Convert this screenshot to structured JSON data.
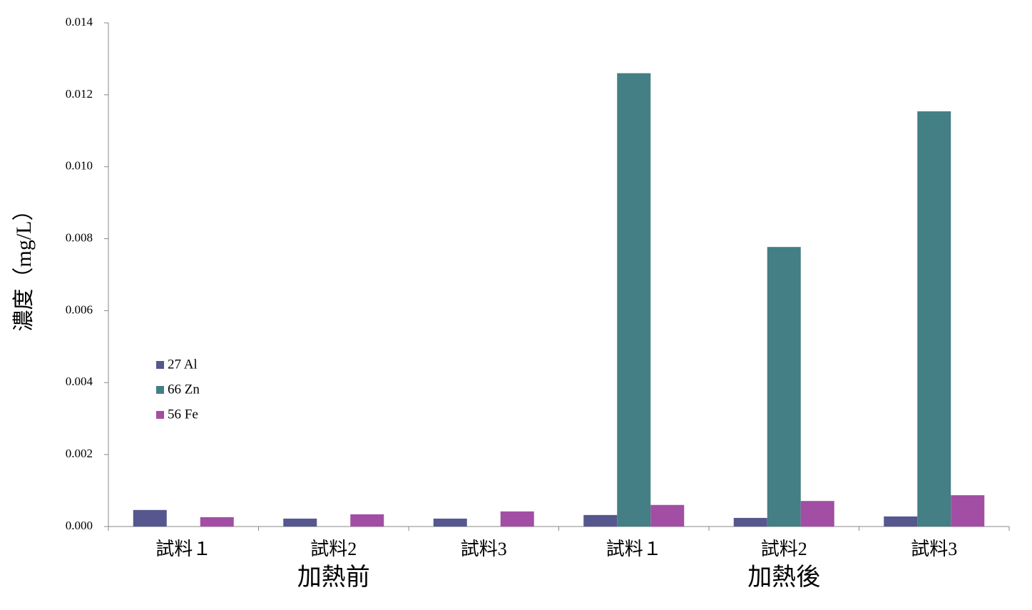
{
  "chart_data": {
    "type": "bar",
    "y_label": "濃度（mg/L）",
    "categories": [
      "試料１",
      "試料2",
      "試料3",
      "試料１",
      "試料2",
      "試料3"
    ],
    "group_labels": [
      "加熱前",
      "加熱後"
    ],
    "series": [
      {
        "name": "27 Al",
        "color": "#55578e",
        "values": [
          0.00046,
          0.00022,
          0.00022,
          0.00032,
          0.00024,
          0.00028
        ]
      },
      {
        "name": "66 Zn",
        "color": "#437f84",
        "values": [
          0,
          0,
          0,
          0.0126,
          0.00777,
          0.01154
        ]
      },
      {
        "name": "56 Fe",
        "color": "#a24ea4",
        "values": [
          0.00026,
          0.00034,
          0.00042,
          0.0006,
          0.00071,
          0.00087
        ]
      }
    ],
    "ylim": [
      0,
      0.014
    ],
    "yticks": [
      {
        "value": 0,
        "label": "0.000"
      },
      0.002,
      0.004,
      0.006,
      0.008,
      {
        "value": 0.01,
        "label": "0.010"
      },
      0.012,
      0.014
    ],
    "legend": "left"
  }
}
